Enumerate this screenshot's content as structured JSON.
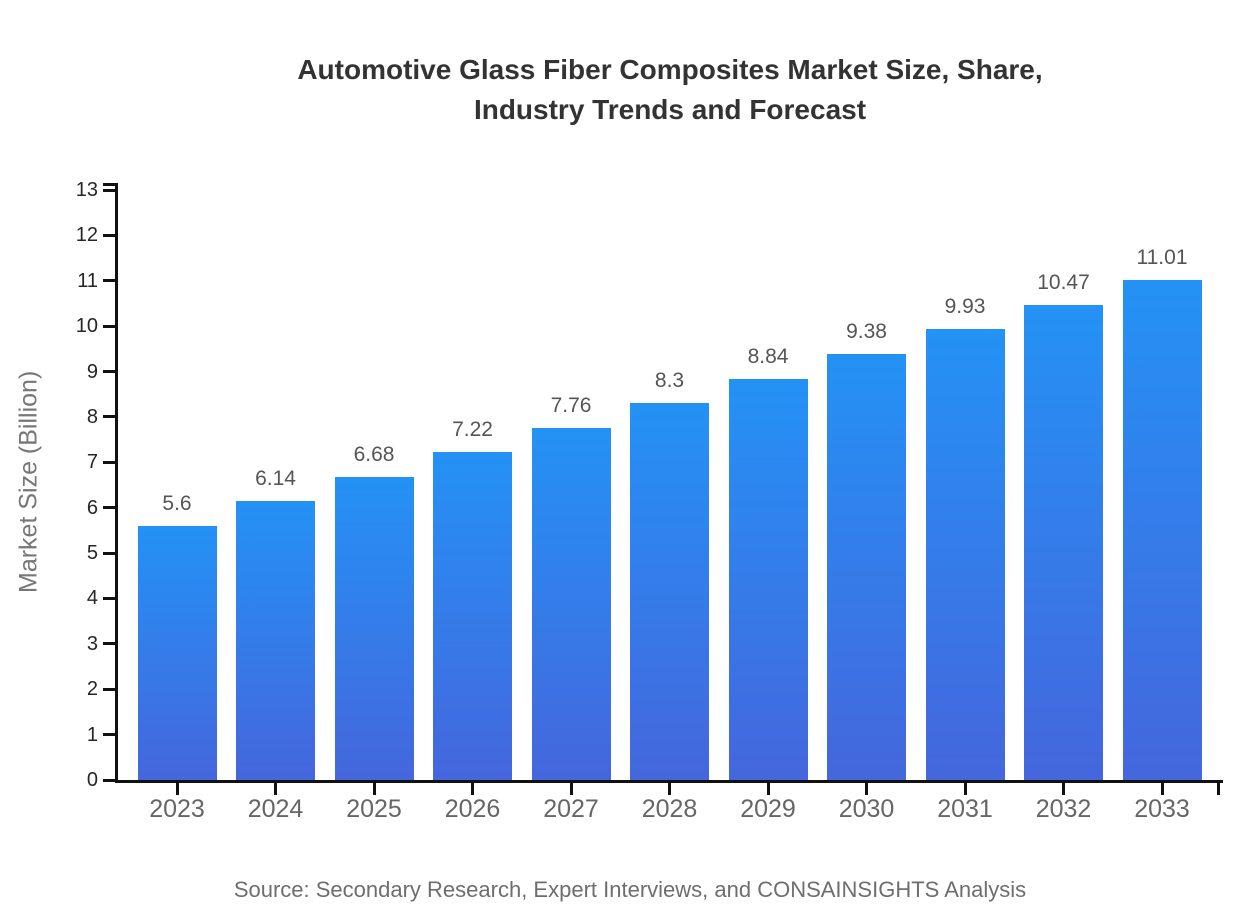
{
  "chart_data": {
    "type": "bar",
    "title": "Automotive Glass Fiber Composites Market Size, Share,\nIndustry Trends and Forecast",
    "ylabel": "Market Size (Billion)",
    "xlabel": "",
    "categories": [
      "2023",
      "2024",
      "2025",
      "2026",
      "2027",
      "2028",
      "2029",
      "2030",
      "2031",
      "2032",
      "2033"
    ],
    "values": [
      5.6,
      6.14,
      6.68,
      7.22,
      7.76,
      8.3,
      8.84,
      9.38,
      9.93,
      10.47,
      11.01
    ],
    "value_labels": [
      "5.6",
      "6.14",
      "6.68",
      "7.22",
      "7.76",
      "8.3",
      "8.84",
      "9.38",
      "9.93",
      "10.47",
      "11.01"
    ],
    "yticks": [
      0,
      1,
      2,
      3,
      4,
      5,
      6,
      7,
      8,
      9,
      10,
      11,
      12,
      13
    ],
    "ylim": [
      0,
      13
    ],
    "grid": false,
    "legend": "none",
    "source": "Source: Secondary Research, Expert Interviews, and CONSAINSIGHTS Analysis",
    "colors": {
      "bar_gradient_top": "#2492F5",
      "bar_gradient_bottom": "#4566DD",
      "axis": "#111111",
      "title_text": "#333333",
      "ytick_label": "#262626",
      "xtick_label": "#666666",
      "value_label": "#555555",
      "axis_title": "#777777",
      "source_text": "#6e6e6e"
    }
  }
}
